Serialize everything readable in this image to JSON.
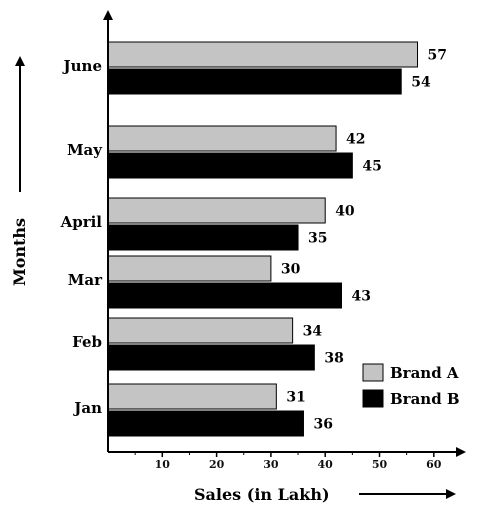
{
  "chart_data": {
    "type": "bar",
    "orientation": "horizontal",
    "categories": [
      "Jan",
      "Feb",
      "Mar",
      "April",
      "May",
      "June"
    ],
    "series": [
      {
        "name": "Brand A",
        "color": "#c4c4c4",
        "values": [
          31,
          34,
          30,
          40,
          42,
          57
        ]
      },
      {
        "name": "Brand B",
        "color": "#000000",
        "values": [
          36,
          38,
          43,
          35,
          45,
          54
        ]
      }
    ],
    "xlabel": "Sales (in Lakh)",
    "ylabel": "Months",
    "xticks": [
      10,
      20,
      30,
      40,
      50,
      60
    ],
    "xlim": [
      0,
      65
    ],
    "legend_position": "bottom-right",
    "grid": false
  }
}
